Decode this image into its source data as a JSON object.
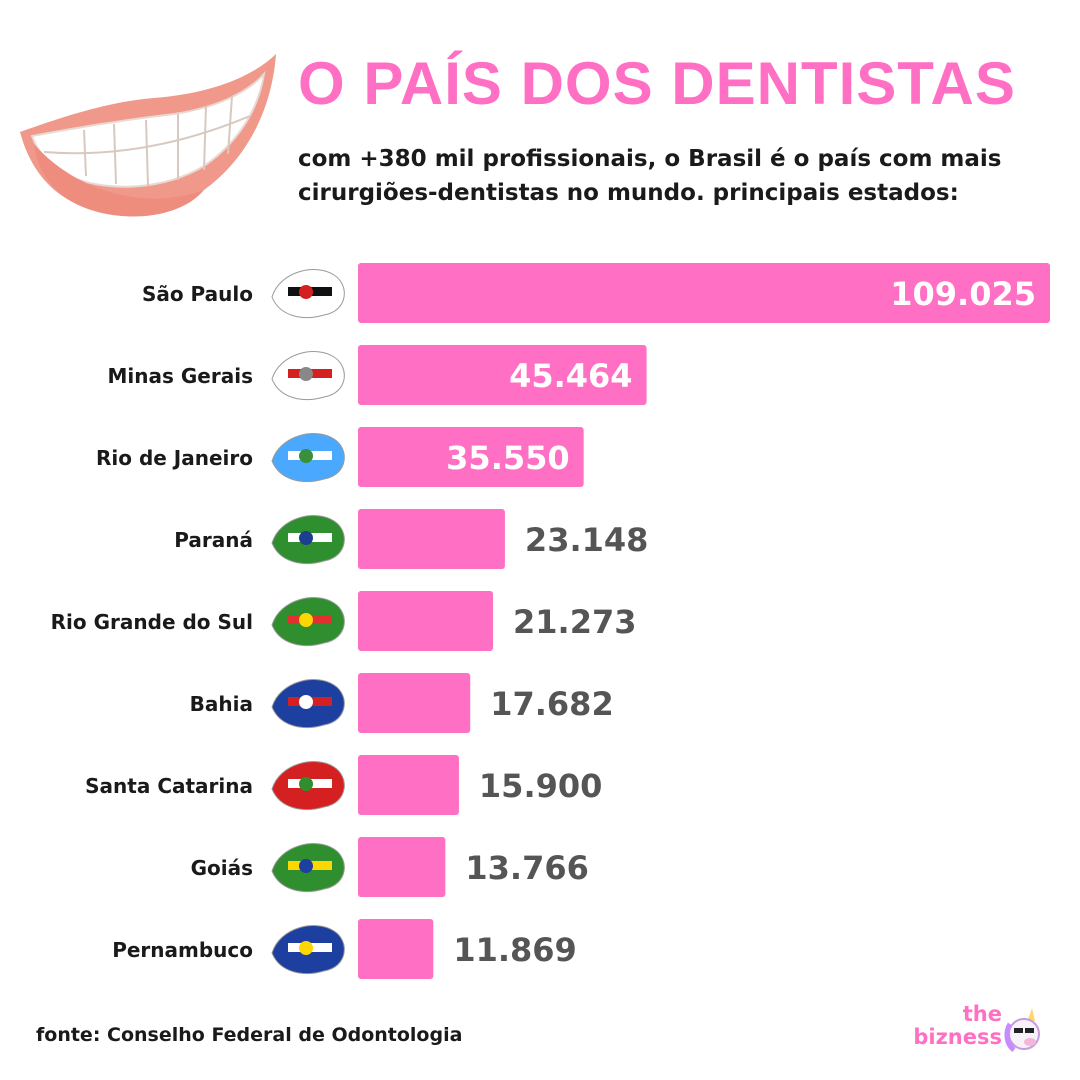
{
  "header": {
    "title": "O PAÍS DOS DENTISTAS",
    "subtitle": "com +380 mil profissionais, o Brasil é o país com mais cirurgiões-dentistas no mundo. principais estados:"
  },
  "footer": {
    "source": "fonte: Conselho Federal de Odontologia"
  },
  "brand": {
    "line1": "the",
    "line2": "bizness",
    "icon": "unicorn-icon"
  },
  "colors": {
    "accent": "#ff6fc3",
    "value_outside": "#555555",
    "value_inside": "#ffffff",
    "label": "#1a1a1a"
  },
  "icons": {
    "top": "smile-icon",
    "flags": "state-flag-map-icon"
  },
  "chart_data": {
    "type": "bar",
    "orientation": "horizontal",
    "categories": [
      "São Paulo",
      "Minas Gerais",
      "Rio de Janeiro",
      "Paraná",
      "Rio Grande do Sul",
      "Bahia",
      "Santa Catarina",
      "Goiás",
      "Pernambuco"
    ],
    "values": [
      109025,
      45464,
      35550,
      23148,
      21273,
      17682,
      15900,
      13766,
      11869
    ],
    "value_labels": [
      "109.025",
      "45.464",
      "35.550",
      "23.148",
      "21.273",
      "17.682",
      "15.900",
      "13.766",
      "11.869"
    ],
    "xlim": [
      0,
      109025
    ],
    "grid": false,
    "legend": "none"
  }
}
